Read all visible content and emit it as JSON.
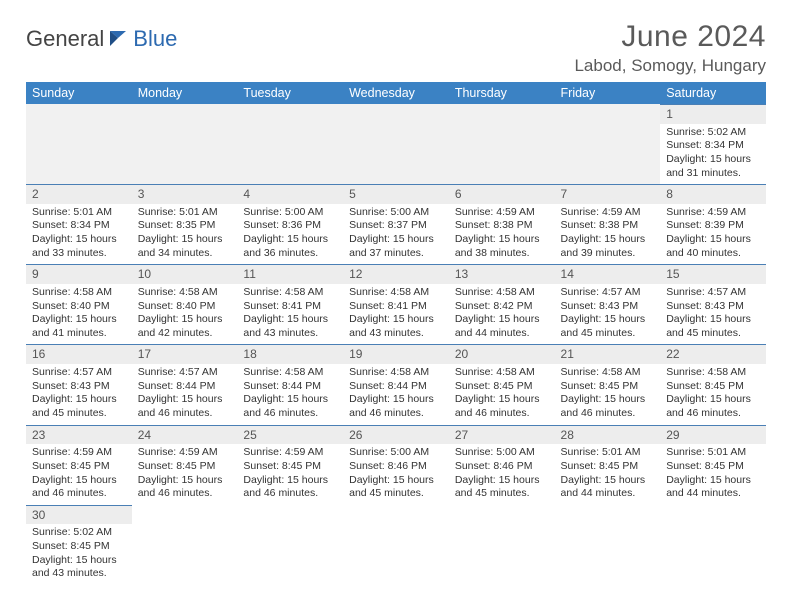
{
  "brand": {
    "part1": "General",
    "part2": "Blue"
  },
  "title": "June 2024",
  "location": "Labod, Somogy, Hungary",
  "colors": {
    "header_bg": "#3b82c4",
    "header_text": "#ffffff",
    "daynum_bg": "#ededed",
    "row_border": "#4a7fb5",
    "text": "#333333",
    "title_text": "#5a5a5a",
    "brand_dark": "#444444",
    "brand_blue": "#2d6ab0",
    "page_bg": "#ffffff"
  },
  "weekdays": [
    "Sunday",
    "Monday",
    "Tuesday",
    "Wednesday",
    "Thursday",
    "Friday",
    "Saturday"
  ],
  "leading_blanks": 6,
  "days": [
    {
      "n": "1",
      "sunrise": "5:02 AM",
      "sunset": "8:34 PM",
      "daylight": "15 hours and 31 minutes."
    },
    {
      "n": "2",
      "sunrise": "5:01 AM",
      "sunset": "8:34 PM",
      "daylight": "15 hours and 33 minutes."
    },
    {
      "n": "3",
      "sunrise": "5:01 AM",
      "sunset": "8:35 PM",
      "daylight": "15 hours and 34 minutes."
    },
    {
      "n": "4",
      "sunrise": "5:00 AM",
      "sunset": "8:36 PM",
      "daylight": "15 hours and 36 minutes."
    },
    {
      "n": "5",
      "sunrise": "5:00 AM",
      "sunset": "8:37 PM",
      "daylight": "15 hours and 37 minutes."
    },
    {
      "n": "6",
      "sunrise": "4:59 AM",
      "sunset": "8:38 PM",
      "daylight": "15 hours and 38 minutes."
    },
    {
      "n": "7",
      "sunrise": "4:59 AM",
      "sunset": "8:38 PM",
      "daylight": "15 hours and 39 minutes."
    },
    {
      "n": "8",
      "sunrise": "4:59 AM",
      "sunset": "8:39 PM",
      "daylight": "15 hours and 40 minutes."
    },
    {
      "n": "9",
      "sunrise": "4:58 AM",
      "sunset": "8:40 PM",
      "daylight": "15 hours and 41 minutes."
    },
    {
      "n": "10",
      "sunrise": "4:58 AM",
      "sunset": "8:40 PM",
      "daylight": "15 hours and 42 minutes."
    },
    {
      "n": "11",
      "sunrise": "4:58 AM",
      "sunset": "8:41 PM",
      "daylight": "15 hours and 43 minutes."
    },
    {
      "n": "12",
      "sunrise": "4:58 AM",
      "sunset": "8:41 PM",
      "daylight": "15 hours and 43 minutes."
    },
    {
      "n": "13",
      "sunrise": "4:58 AM",
      "sunset": "8:42 PM",
      "daylight": "15 hours and 44 minutes."
    },
    {
      "n": "14",
      "sunrise": "4:57 AM",
      "sunset": "8:43 PM",
      "daylight": "15 hours and 45 minutes."
    },
    {
      "n": "15",
      "sunrise": "4:57 AM",
      "sunset": "8:43 PM",
      "daylight": "15 hours and 45 minutes."
    },
    {
      "n": "16",
      "sunrise": "4:57 AM",
      "sunset": "8:43 PM",
      "daylight": "15 hours and 45 minutes."
    },
    {
      "n": "17",
      "sunrise": "4:57 AM",
      "sunset": "8:44 PM",
      "daylight": "15 hours and 46 minutes."
    },
    {
      "n": "18",
      "sunrise": "4:58 AM",
      "sunset": "8:44 PM",
      "daylight": "15 hours and 46 minutes."
    },
    {
      "n": "19",
      "sunrise": "4:58 AM",
      "sunset": "8:44 PM",
      "daylight": "15 hours and 46 minutes."
    },
    {
      "n": "20",
      "sunrise": "4:58 AM",
      "sunset": "8:45 PM",
      "daylight": "15 hours and 46 minutes."
    },
    {
      "n": "21",
      "sunrise": "4:58 AM",
      "sunset": "8:45 PM",
      "daylight": "15 hours and 46 minutes."
    },
    {
      "n": "22",
      "sunrise": "4:58 AM",
      "sunset": "8:45 PM",
      "daylight": "15 hours and 46 minutes."
    },
    {
      "n": "23",
      "sunrise": "4:59 AM",
      "sunset": "8:45 PM",
      "daylight": "15 hours and 46 minutes."
    },
    {
      "n": "24",
      "sunrise": "4:59 AM",
      "sunset": "8:45 PM",
      "daylight": "15 hours and 46 minutes."
    },
    {
      "n": "25",
      "sunrise": "4:59 AM",
      "sunset": "8:45 PM",
      "daylight": "15 hours and 46 minutes."
    },
    {
      "n": "26",
      "sunrise": "5:00 AM",
      "sunset": "8:46 PM",
      "daylight": "15 hours and 45 minutes."
    },
    {
      "n": "27",
      "sunrise": "5:00 AM",
      "sunset": "8:46 PM",
      "daylight": "15 hours and 45 minutes."
    },
    {
      "n": "28",
      "sunrise": "5:01 AM",
      "sunset": "8:45 PM",
      "daylight": "15 hours and 44 minutes."
    },
    {
      "n": "29",
      "sunrise": "5:01 AM",
      "sunset": "8:45 PM",
      "daylight": "15 hours and 44 minutes."
    },
    {
      "n": "30",
      "sunrise": "5:02 AM",
      "sunset": "8:45 PM",
      "daylight": "15 hours and 43 minutes."
    }
  ],
  "labels": {
    "sunrise": "Sunrise:",
    "sunset": "Sunset:",
    "daylight": "Daylight:"
  }
}
